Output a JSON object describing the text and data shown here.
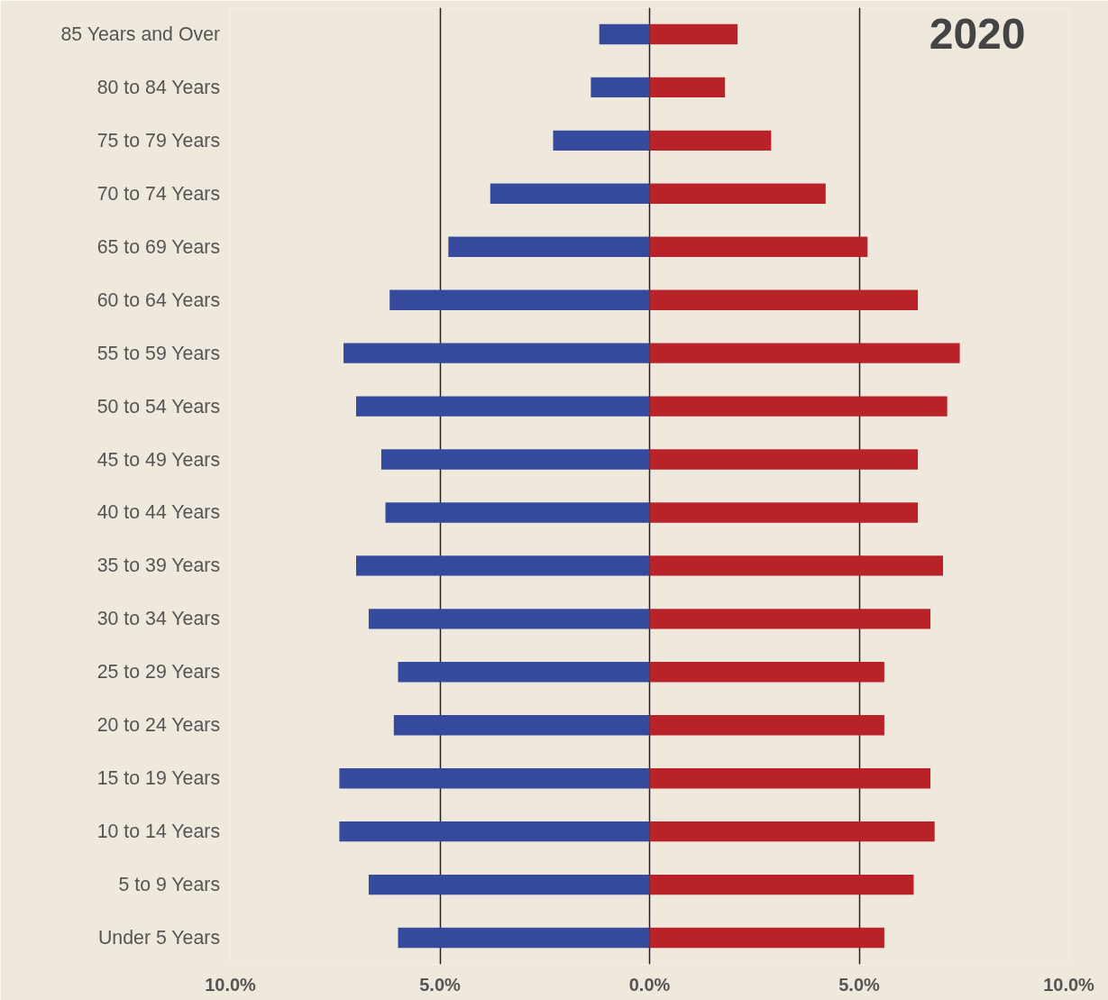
{
  "chart_data": {
    "type": "bar",
    "orientation": "horizontal",
    "title": "2020",
    "categories": [
      "85 Years and Over",
      "80 to 84 Years",
      "75 to 79 Years",
      "70 to 74 Years",
      "65 to 69 Years",
      "60 to 64 Years",
      "55 to 59 Years",
      "50 to 54 Years",
      "45 to 49 Years",
      "40 to 44 Years",
      "35 to 39 Years",
      "30 to 34 Years",
      "25 to 29 Years",
      "20 to 24 Years",
      "15 to 19 Years",
      "10 to 14 Years",
      "5 to 9 Years",
      "Under 5 Years"
    ],
    "series": [
      {
        "color": "#354a9c",
        "values": [
          -1.2,
          -1.4,
          -2.3,
          -3.8,
          -4.8,
          -6.2,
          -7.3,
          -7.0,
          -6.4,
          -6.3,
          -7.0,
          -6.7,
          -6.0,
          -6.1,
          -7.4,
          -7.4,
          -6.7,
          -6.0
        ]
      },
      {
        "color": "#b92229",
        "values": [
          2.1,
          1.8,
          2.9,
          4.2,
          5.2,
          6.4,
          7.4,
          7.1,
          6.4,
          6.4,
          7.0,
          6.7,
          5.6,
          5.6,
          6.7,
          6.8,
          6.3,
          5.6
        ]
      }
    ],
    "xlim": [
      -10,
      10
    ],
    "xticks": [
      {
        "value": -10,
        "label": "10.0%"
      },
      {
        "value": -5,
        "label": "5.0%"
      },
      {
        "value": 0,
        "label": "0.0%"
      },
      {
        "value": 5,
        "label": "5.0%"
      },
      {
        "value": 10,
        "label": "10.0%"
      }
    ],
    "grid": "x",
    "stacked": true
  }
}
